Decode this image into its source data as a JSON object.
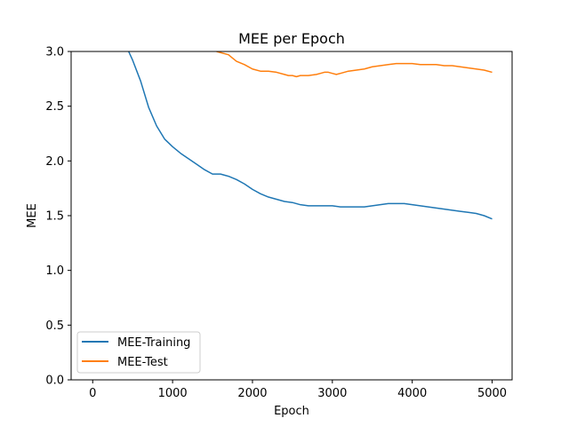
{
  "chart_data": {
    "type": "line",
    "title": "MEE per Epoch",
    "xlabel": "Epoch",
    "ylabel": "MEE",
    "xlim": [
      -270,
      5250
    ],
    "ylim": [
      0,
      3.0
    ],
    "xticks": [
      0,
      1000,
      2000,
      3000,
      4000,
      5000
    ],
    "xtick_labels": [
      "0",
      "1000",
      "2000",
      "3000",
      "4000",
      "5000"
    ],
    "yticks": [
      0,
      0.5,
      1.0,
      1.5,
      2.0,
      2.5,
      3.0
    ],
    "ytick_labels": [
      "0.0",
      "0.5",
      "1.0",
      "1.5",
      "2.0",
      "2.5",
      "3.0"
    ],
    "grid": false,
    "legend_position": "lower-left",
    "series": [
      {
        "name": "MEE-Training",
        "color": "#1f77b4",
        "points": [
          [
            450,
            3.0
          ],
          [
            500,
            2.92
          ],
          [
            600,
            2.73
          ],
          [
            700,
            2.49
          ],
          [
            800,
            2.32
          ],
          [
            900,
            2.2
          ],
          [
            1000,
            2.13
          ],
          [
            1100,
            2.07
          ],
          [
            1200,
            2.02
          ],
          [
            1300,
            1.97
          ],
          [
            1400,
            1.92
          ],
          [
            1500,
            1.88
          ],
          [
            1600,
            1.88
          ],
          [
            1700,
            1.86
          ],
          [
            1800,
            1.83
          ],
          [
            1900,
            1.79
          ],
          [
            2000,
            1.74
          ],
          [
            2100,
            1.7
          ],
          [
            2200,
            1.67
          ],
          [
            2300,
            1.65
          ],
          [
            2400,
            1.63
          ],
          [
            2500,
            1.62
          ],
          [
            2600,
            1.6
          ],
          [
            2700,
            1.59
          ],
          [
            2800,
            1.59
          ],
          [
            2900,
            1.59
          ],
          [
            3000,
            1.59
          ],
          [
            3100,
            1.58
          ],
          [
            3200,
            1.58
          ],
          [
            3300,
            1.58
          ],
          [
            3400,
            1.58
          ],
          [
            3500,
            1.59
          ],
          [
            3600,
            1.6
          ],
          [
            3700,
            1.61
          ],
          [
            3800,
            1.61
          ],
          [
            3900,
            1.61
          ],
          [
            4000,
            1.6
          ],
          [
            4100,
            1.59
          ],
          [
            4200,
            1.58
          ],
          [
            4300,
            1.57
          ],
          [
            4400,
            1.56
          ],
          [
            4500,
            1.55
          ],
          [
            4600,
            1.54
          ],
          [
            4700,
            1.53
          ],
          [
            4800,
            1.52
          ],
          [
            4900,
            1.5
          ],
          [
            5000,
            1.47
          ]
        ]
      },
      {
        "name": "MEE-Test",
        "color": "#ff7f0e",
        "points": [
          [
            1550,
            3.0
          ],
          [
            1600,
            2.99
          ],
          [
            1700,
            2.97
          ],
          [
            1750,
            2.94
          ],
          [
            1800,
            2.91
          ],
          [
            1900,
            2.88
          ],
          [
            2000,
            2.84
          ],
          [
            2100,
            2.82
          ],
          [
            2200,
            2.82
          ],
          [
            2300,
            2.81
          ],
          [
            2400,
            2.79
          ],
          [
            2450,
            2.78
          ],
          [
            2500,
            2.78
          ],
          [
            2550,
            2.77
          ],
          [
            2600,
            2.78
          ],
          [
            2700,
            2.78
          ],
          [
            2800,
            2.79
          ],
          [
            2850,
            2.8
          ],
          [
            2900,
            2.81
          ],
          [
            2950,
            2.81
          ],
          [
            3000,
            2.8
          ],
          [
            3050,
            2.79
          ],
          [
            3100,
            2.8
          ],
          [
            3200,
            2.82
          ],
          [
            3300,
            2.83
          ],
          [
            3400,
            2.84
          ],
          [
            3500,
            2.86
          ],
          [
            3600,
            2.87
          ],
          [
            3700,
            2.88
          ],
          [
            3800,
            2.89
          ],
          [
            3900,
            2.89
          ],
          [
            4000,
            2.89
          ],
          [
            4100,
            2.88
          ],
          [
            4200,
            2.88
          ],
          [
            4300,
            2.88
          ],
          [
            4400,
            2.87
          ],
          [
            4500,
            2.87
          ],
          [
            4600,
            2.86
          ],
          [
            4700,
            2.85
          ],
          [
            4800,
            2.84
          ],
          [
            4900,
            2.83
          ],
          [
            5000,
            2.81
          ]
        ]
      }
    ]
  }
}
